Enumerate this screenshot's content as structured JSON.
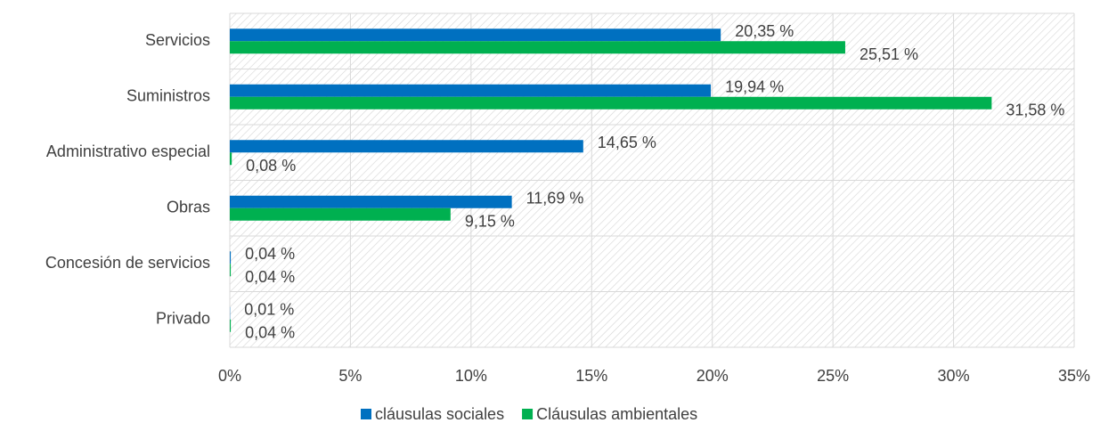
{
  "chart_data": {
    "type": "hbar",
    "categories": [
      "Servicios",
      "Suministros",
      "Administrativo especial",
      "Obras",
      "Concesión de servicios",
      "Privado"
    ],
    "series": [
      {
        "name": "cláusulas sociales",
        "color": "#0070c0",
        "values": [
          20.35,
          19.94,
          14.65,
          11.69,
          0.04,
          0.01
        ],
        "value_labels": [
          "20,35 %",
          "19,94 %",
          "14,65 %",
          "11,69 %",
          "0,04 %",
          "0,01 %"
        ]
      },
      {
        "name": "Cláusulas ambientales",
        "color": "#00b050",
        "values": [
          25.51,
          31.58,
          0.08,
          9.15,
          0.04,
          0.04
        ],
        "value_labels": [
          "25,51 %",
          "31,58 %",
          "0,08 %",
          "9,15 %",
          "0,04 %",
          "0,04 %"
        ]
      }
    ],
    "xlim": [
      0,
      35
    ],
    "xticks": [
      {
        "value": 0,
        "label": "0%"
      },
      {
        "value": 5,
        "label": "5%"
      },
      {
        "value": 10,
        "label": "10%"
      },
      {
        "value": 15,
        "label": "15%"
      },
      {
        "value": 20,
        "label": "20%"
      },
      {
        "value": 25,
        "label": "25%"
      },
      {
        "value": 30,
        "label": "30%"
      },
      {
        "value": 35,
        "label": "35%"
      }
    ],
    "grid": true,
    "legend": "bottom"
  }
}
